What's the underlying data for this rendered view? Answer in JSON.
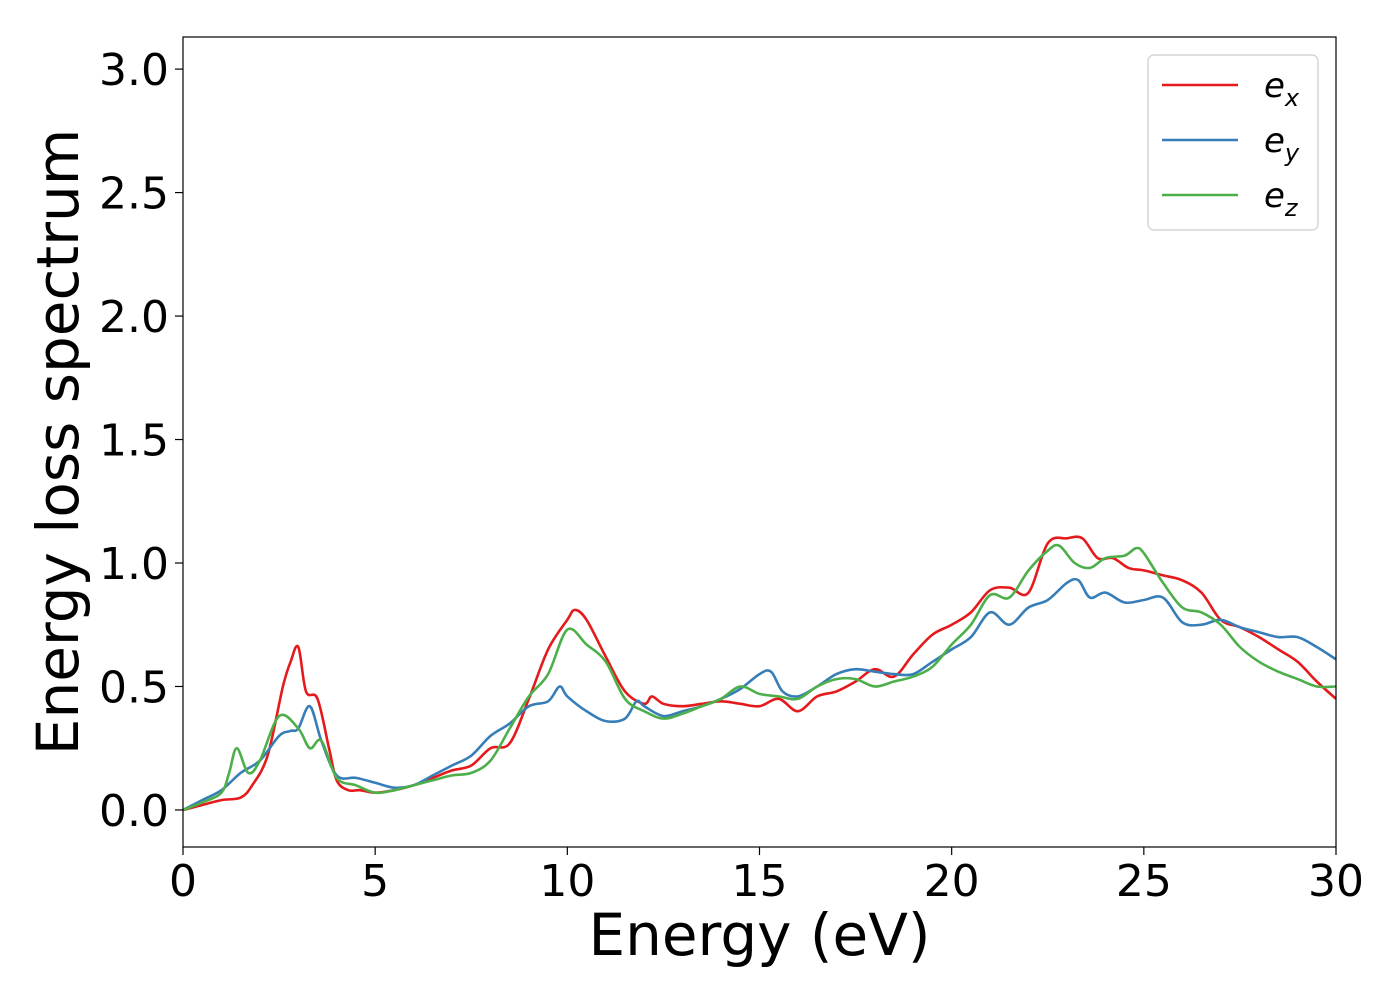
{
  "chart_data": {
    "type": "line",
    "title": "",
    "xlabel": "Energy (eV)",
    "ylabel": "Energy loss spectrum",
    "xlim": [
      0,
      30
    ],
    "ylim": [
      -0.15,
      3.13
    ],
    "xticks": [
      0,
      5,
      10,
      15,
      20,
      25,
      30
    ],
    "yticks": [
      0.0,
      0.5,
      1.0,
      1.5,
      2.0,
      2.5,
      3.0
    ],
    "xtick_labels": [
      "0",
      "5",
      "10",
      "15",
      "20",
      "25",
      "30"
    ],
    "ytick_labels": [
      "0.0",
      "0.5",
      "1.0",
      "1.5",
      "2.0",
      "2.5",
      "3.0"
    ],
    "grid": false,
    "legend_position": "top-right",
    "series": [
      {
        "name": "e_x",
        "label_main": "e",
        "label_sub": "x",
        "color": "#e41a1c",
        "x": [
          0,
          0.5,
          1,
          1.5,
          1.8,
          2.2,
          2.6,
          2.8,
          3.0,
          3.2,
          3.5,
          3.8,
          4.0,
          4.3,
          4.6,
          5.0,
          5.5,
          6.0,
          6.5,
          7.0,
          7.5,
          8.0,
          8.5,
          9.0,
          9.5,
          10.0,
          10.2,
          10.5,
          11.0,
          11.5,
          12.0,
          12.2,
          12.5,
          13.0,
          13.5,
          14.0,
          14.5,
          15.0,
          15.5,
          16.0,
          16.5,
          17.0,
          17.5,
          18.0,
          18.5,
          19.0,
          19.5,
          20.0,
          20.5,
          21.0,
          21.5,
          22.0,
          22.5,
          23.0,
          23.4,
          23.8,
          24.2,
          24.6,
          25.0,
          25.5,
          26.0,
          26.5,
          27.0,
          27.5,
          28.0,
          28.5,
          29.0,
          29.5,
          30.0
        ],
        "y": [
          0.0,
          0.02,
          0.04,
          0.05,
          0.1,
          0.22,
          0.5,
          0.6,
          0.66,
          0.48,
          0.45,
          0.25,
          0.12,
          0.08,
          0.08,
          0.07,
          0.08,
          0.1,
          0.13,
          0.16,
          0.18,
          0.25,
          0.27,
          0.45,
          0.65,
          0.77,
          0.81,
          0.77,
          0.62,
          0.48,
          0.43,
          0.46,
          0.43,
          0.42,
          0.43,
          0.44,
          0.43,
          0.42,
          0.45,
          0.4,
          0.46,
          0.48,
          0.52,
          0.57,
          0.54,
          0.63,
          0.71,
          0.75,
          0.8,
          0.89,
          0.9,
          0.88,
          1.08,
          1.1,
          1.1,
          1.02,
          1.02,
          0.98,
          0.97,
          0.95,
          0.93,
          0.88,
          0.77,
          0.74,
          0.7,
          0.65,
          0.6,
          0.52,
          0.45
        ]
      },
      {
        "name": "e_y",
        "label_main": "e",
        "label_sub": "y",
        "color": "#377eb8",
        "x": [
          0,
          0.5,
          1,
          1.5,
          2.0,
          2.5,
          2.8,
          3.0,
          3.3,
          3.6,
          4.0,
          4.5,
          5.0,
          5.5,
          6.0,
          6.5,
          7.0,
          7.5,
          8.0,
          8.5,
          9.0,
          9.5,
          9.8,
          10.0,
          10.5,
          11.0,
          11.5,
          11.8,
          12.0,
          12.5,
          13.0,
          13.5,
          14.0,
          14.5,
          15.0,
          15.3,
          15.6,
          16.0,
          16.5,
          17.0,
          17.5,
          18.0,
          18.5,
          19.0,
          19.5,
          20.0,
          20.5,
          21.0,
          21.5,
          22.0,
          22.5,
          23.0,
          23.3,
          23.6,
          24.0,
          24.5,
          25.0,
          25.5,
          26.0,
          26.5,
          27.0,
          27.5,
          28.0,
          28.5,
          29.0,
          29.5,
          30.0
        ],
        "y": [
          0.0,
          0.04,
          0.08,
          0.15,
          0.2,
          0.3,
          0.32,
          0.33,
          0.42,
          0.28,
          0.14,
          0.13,
          0.11,
          0.09,
          0.1,
          0.14,
          0.18,
          0.22,
          0.3,
          0.35,
          0.42,
          0.44,
          0.5,
          0.46,
          0.4,
          0.36,
          0.37,
          0.44,
          0.42,
          0.38,
          0.4,
          0.42,
          0.45,
          0.49,
          0.55,
          0.56,
          0.48,
          0.46,
          0.5,
          0.55,
          0.57,
          0.56,
          0.55,
          0.55,
          0.6,
          0.65,
          0.7,
          0.8,
          0.75,
          0.82,
          0.85,
          0.92,
          0.93,
          0.86,
          0.88,
          0.84,
          0.85,
          0.86,
          0.76,
          0.75,
          0.77,
          0.74,
          0.72,
          0.7,
          0.7,
          0.66,
          0.61
        ]
      },
      {
        "name": "e_z",
        "label_main": "e",
        "label_sub": "z",
        "color": "#4daf4a",
        "x": [
          0,
          0.5,
          1.0,
          1.2,
          1.4,
          1.7,
          2.0,
          2.5,
          3.0,
          3.3,
          3.6,
          4.0,
          4.5,
          5.0,
          5.5,
          6.0,
          6.5,
          7.0,
          7.5,
          8.0,
          8.5,
          9.0,
          9.5,
          10.0,
          10.5,
          11.0,
          11.5,
          12.0,
          12.5,
          13.0,
          13.5,
          14.0,
          14.5,
          15.0,
          15.5,
          16.0,
          16.5,
          17.0,
          17.5,
          18.0,
          18.5,
          19.0,
          19.5,
          20.0,
          20.5,
          21.0,
          21.5,
          22.0,
          22.5,
          22.8,
          23.2,
          23.6,
          24.0,
          24.5,
          24.8,
          25.0,
          25.5,
          26.0,
          26.5,
          27.0,
          27.5,
          28.0,
          28.5,
          29.0,
          29.5,
          30.0
        ],
        "y": [
          0.0,
          0.03,
          0.07,
          0.15,
          0.25,
          0.15,
          0.2,
          0.38,
          0.33,
          0.25,
          0.28,
          0.13,
          0.1,
          0.07,
          0.08,
          0.1,
          0.12,
          0.14,
          0.15,
          0.2,
          0.33,
          0.46,
          0.55,
          0.73,
          0.67,
          0.6,
          0.45,
          0.4,
          0.37,
          0.39,
          0.42,
          0.45,
          0.5,
          0.47,
          0.46,
          0.45,
          0.5,
          0.53,
          0.53,
          0.5,
          0.52,
          0.54,
          0.58,
          0.67,
          0.75,
          0.87,
          0.86,
          0.97,
          1.05,
          1.07,
          1.0,
          0.98,
          1.02,
          1.03,
          1.06,
          1.04,
          0.92,
          0.82,
          0.8,
          0.75,
          0.66,
          0.6,
          0.56,
          0.53,
          0.5,
          0.5
        ]
      }
    ]
  }
}
